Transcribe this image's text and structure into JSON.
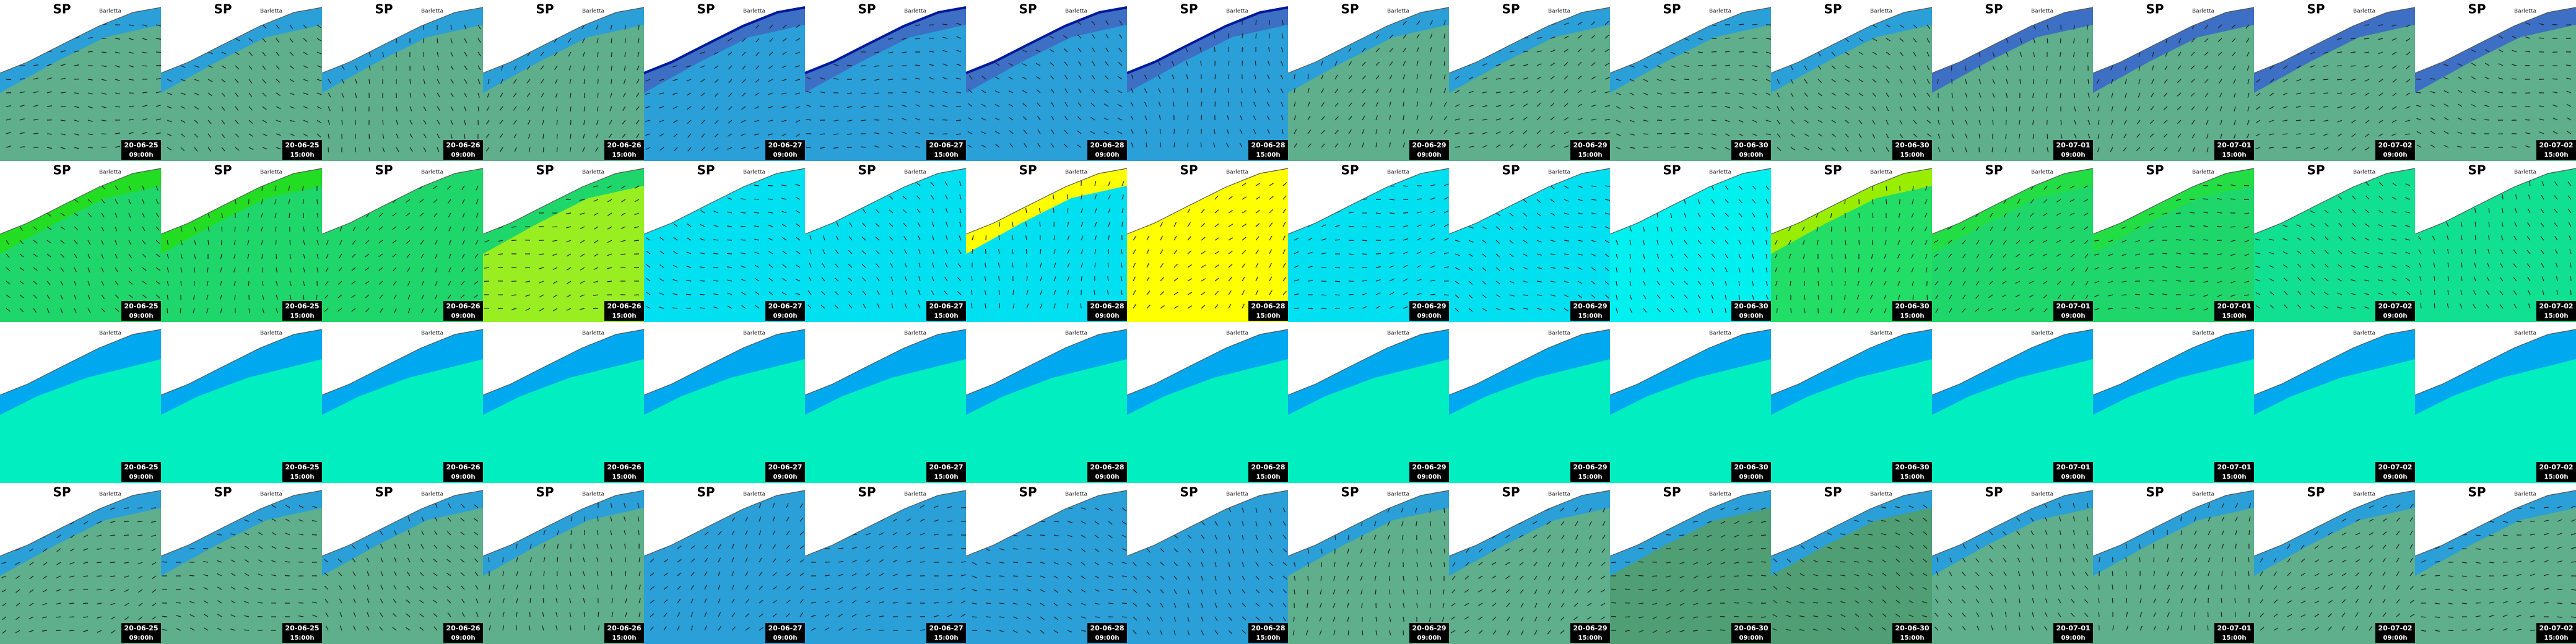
{
  "map_title": "SP",
  "place_label": "Barletta",
  "frames": [
    {
      "date": "20-06-25",
      "time": "09:00h"
    },
    {
      "date": "20-06-25",
      "time": "15:00h"
    },
    {
      "date": "20-06-26",
      "time": "09:00h"
    },
    {
      "date": "20-06-26",
      "time": "15:00h"
    },
    {
      "date": "20-06-27",
      "time": "09:00h"
    },
    {
      "date": "20-06-27",
      "time": "15:00h"
    },
    {
      "date": "20-06-28",
      "time": "09:00h"
    },
    {
      "date": "20-06-28",
      "time": "15:00h"
    },
    {
      "date": "20-06-29",
      "time": "09:00h"
    },
    {
      "date": "20-06-29",
      "time": "15:00h"
    },
    {
      "date": "20-06-30",
      "time": "09:00h"
    },
    {
      "date": "20-06-30",
      "time": "15:00h"
    },
    {
      "date": "20-07-01",
      "time": "09:00h"
    },
    {
      "date": "20-07-01",
      "time": "15:00h"
    },
    {
      "date": "20-07-02",
      "time": "09:00h"
    },
    {
      "date": "20-07-02",
      "time": "15:00h"
    }
  ],
  "rows": [
    {
      "titled": true,
      "sea": [
        "#2b9fd8",
        "#2b9fd8",
        "#2b9fd8",
        "#2b9fd8",
        "#3d6fc4",
        "#3d6fc4",
        "#3d6fc4",
        "#3d6fc4",
        "#2b9fd8",
        "#2b9fd8",
        "#2b9fd8",
        "#2b9fd8",
        "#3d6fc4",
        "#3d6fc4",
        "#3d6fc4",
        "#3d6fc4"
      ],
      "zone": [
        "#5fae8c",
        "#5fae8c",
        "#5fae8c",
        "#5fae8c",
        "#2b9fd8",
        "#2b9fd8",
        "#2b9fd8",
        "#2b9fd8",
        "#5fae8c",
        "#5fae8c",
        "#5fae8c",
        "#5fae8c",
        "#5fae8c",
        "#5fae8c",
        "#5fae8c",
        "#5fae8c"
      ]
    },
    {
      "titled": true,
      "sea": [
        "#22dd22",
        "#22dd22",
        "#1fd66a",
        "#1fd66a",
        "#00e0f0",
        "#00e0f0",
        "#ffff00",
        "#ffff00",
        "#00e0f0",
        "#00e0f0",
        "#00f0f0",
        "#99ee00",
        "#22dd44",
        "#22dd44",
        "#11e090",
        "#11e090"
      ],
      "zone": [
        "#1fd66a",
        "#1fd66a",
        "#1fd66a",
        "#99ee22",
        "#00e0f0",
        "#00e0f0",
        "#00e0f0",
        "#ffff00",
        "#00e0f0",
        "#00e0f0",
        "#00f0f0",
        "#22dd66",
        "#1fd66a",
        "#1fd66a",
        "#11e090",
        "#11e090"
      ]
    },
    {
      "titled": false,
      "sea": [
        "#00a8f0",
        "#00a8f0",
        "#00a8f0",
        "#00a8f0",
        "#00a8f0",
        "#00a8f0",
        "#00a8f0",
        "#00a8f0",
        "#00a8f0",
        "#00a8f0",
        "#00a8f0",
        "#00a8f0",
        "#00a8f0",
        "#00a8f0",
        "#00a8f0",
        "#00a8f0"
      ],
      "zone": [
        "#00eec0",
        "#00eec0",
        "#00eec0",
        "#00eec0",
        "#00eec0",
        "#00eec0",
        "#00eec0",
        "#00eec0",
        "#00eec0",
        "#00eec0",
        "#00eec0",
        "#00eec0",
        "#00eec0",
        "#00eec0",
        "#00eec0",
        "#00eec0"
      ]
    },
    {
      "titled": true,
      "sea": [
        "#2b9fd8",
        "#2b9fd8",
        "#2b9fd8",
        "#2b9fd8",
        "#2b9fd8",
        "#2b9fd8",
        "#2b9fd8",
        "#2b9fd8",
        "#2b9fd8",
        "#2b9fd8",
        "#2b9fd8",
        "#2b9fd8",
        "#2b9fd8",
        "#2b9fd8",
        "#2b9fd8",
        "#2b9fd8"
      ],
      "zone": [
        "#5fae8c",
        "#5fae8c",
        "#5fae8c",
        "#5fae8c",
        "#2b9fd8",
        "#2b9fd8",
        "#2b9fd8",
        "#2b9fd8",
        "#5fae8c",
        "#5fae8c",
        "#4f9e74",
        "#4f9e74",
        "#5fae8c",
        "#5fae8c",
        "#5fae8c",
        "#5fae8c"
      ]
    }
  ]
}
